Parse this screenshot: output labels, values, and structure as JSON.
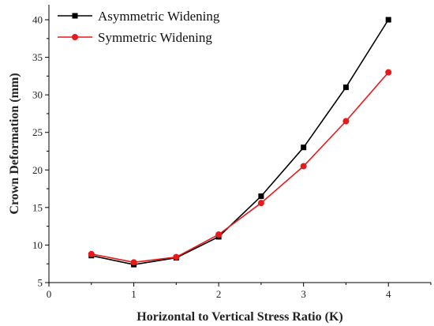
{
  "chart_data": {
    "type": "line",
    "xlabel": "Horizontal to Vertical Stress Ratio (K)",
    "ylabel": "Crown Deformation (mm)",
    "xlim": [
      0,
      4.5
    ],
    "ylim": [
      5,
      42
    ],
    "xticks": [
      0,
      1,
      2,
      3,
      4
    ],
    "yticks": [
      5,
      10,
      15,
      20,
      25,
      30,
      35,
      40
    ],
    "x": [
      0.5,
      1.0,
      1.5,
      2.0,
      2.5,
      3.0,
      3.5,
      4.0
    ],
    "legend_position": "top-left",
    "grid": false,
    "series": [
      {
        "name": "Asymmetric Widening",
        "color": "#000000",
        "marker": "square",
        "values": [
          8.6,
          7.4,
          8.3,
          11.1,
          16.5,
          23.0,
          31.0,
          40.0
        ]
      },
      {
        "name": "Symmetric Widening",
        "color": "#e8191b",
        "marker": "circle",
        "values": [
          8.8,
          7.7,
          8.4,
          11.4,
          15.6,
          20.5,
          26.5,
          33.0
        ]
      }
    ]
  }
}
